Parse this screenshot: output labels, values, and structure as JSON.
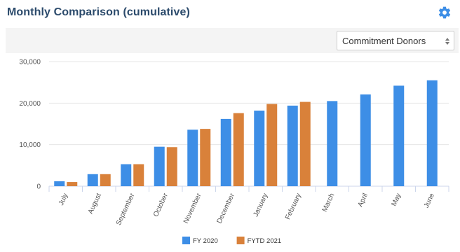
{
  "header": {
    "title": "Monthly Comparison (cumulative)",
    "settings_icon": "gear-icon"
  },
  "toolbar": {
    "dropdown_value": "Commitment Donors"
  },
  "colors": {
    "fy2020": "#3d8ee6",
    "fytd2021": "#d9813a",
    "title": "#2b4a6b"
  },
  "chart_data": {
    "type": "bar",
    "categories": [
      "July",
      "August",
      "September",
      "October",
      "November",
      "December",
      "January",
      "February",
      "March",
      "April",
      "May",
      "June"
    ],
    "series": [
      {
        "name": "FY 2020",
        "values": [
          1200,
          2900,
          5300,
          9500,
          13600,
          16200,
          18200,
          19400,
          20500,
          22100,
          24200,
          25500
        ]
      },
      {
        "name": "FYTD 2021",
        "values": [
          1000,
          2900,
          5300,
          9400,
          13800,
          17600,
          19800,
          20300,
          null,
          null,
          null,
          null
        ]
      }
    ],
    "y_ticks": [
      "0",
      "10,000",
      "20,000",
      "30,000"
    ],
    "ylim": [
      0,
      30000
    ],
    "grid": true,
    "legend_position": "bottom-center"
  }
}
